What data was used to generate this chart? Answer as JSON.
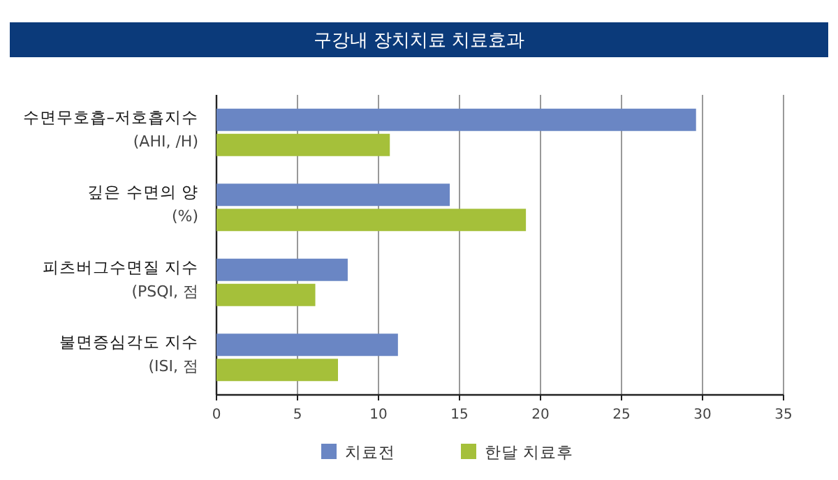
{
  "chart_data": {
    "type": "bar",
    "orientation": "horizontal",
    "title": "구강내 장치치료 치료효과",
    "categories": [
      "수면무호흡–저호흡지수\n(AHI, /H)",
      "깊은 수면의 양\n(%)",
      "피츠버그수면질 지수\n(PSQI, 점",
      "불면증심각도 지수\n(ISI, 점"
    ],
    "series": [
      {
        "name": "치료전",
        "color": "#6a86c4",
        "values": [
          29.6,
          14.4,
          8.1,
          11.2
        ]
      },
      {
        "name": "한달 치료후",
        "color": "#a5c03a",
        "values": [
          10.7,
          19.1,
          6.1,
          7.5
        ]
      }
    ],
    "xlim": [
      0,
      35
    ],
    "xticks": [
      0,
      5,
      10,
      15,
      20,
      25,
      30,
      35
    ],
    "grid": "x",
    "legend": "bottom"
  }
}
